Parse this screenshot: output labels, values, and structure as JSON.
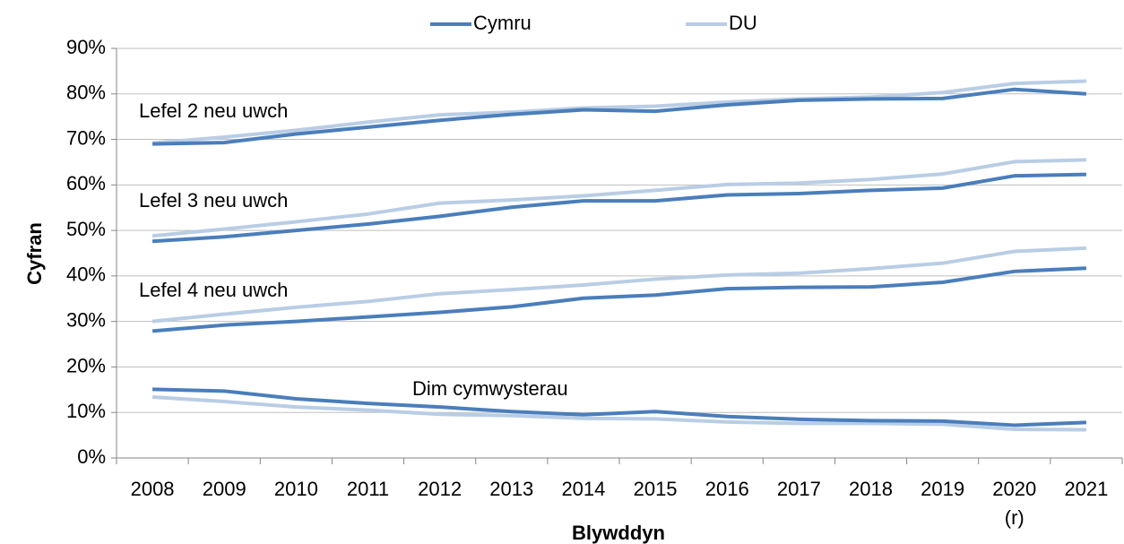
{
  "chart_data": {
    "type": "line",
    "x_label": "Blywddyn",
    "y_label": "Cyfran",
    "legend_position": "top",
    "categories": [
      "2008",
      "2009",
      "2010",
      "2011",
      "2012",
      "2013",
      "2014",
      "2015",
      "2016",
      "2017",
      "2018",
      "2019",
      "2020",
      "2021"
    ],
    "category_notes": [
      null,
      null,
      null,
      null,
      null,
      null,
      null,
      null,
      null,
      null,
      null,
      null,
      "(r)",
      null
    ],
    "legend": [
      {
        "name": "Cymru",
        "color": "#4a7ebb"
      },
      {
        "name": "DU",
        "color": "#b9cde5"
      }
    ],
    "groups": [
      {
        "label": "Lefel 2 neu uwch",
        "values": [
          [
            69.0,
            69.3,
            71.2,
            72.7,
            74.2,
            75.5,
            76.5,
            76.2,
            77.6,
            78.6,
            78.9,
            79.0,
            81.0,
            80.0
          ],
          [
            69.2,
            70.5,
            72.0,
            73.8,
            75.4,
            76.0,
            76.9,
            77.3,
            78.2,
            78.9,
            79.3,
            80.3,
            82.3,
            82.8
          ]
        ]
      },
      {
        "label": "Lefel 3 neu uwch",
        "values": [
          [
            47.6,
            48.6,
            50.0,
            51.4,
            53.1,
            55.1,
            56.5,
            56.5,
            57.8,
            58.1,
            58.8,
            59.3,
            62.0,
            62.3
          ],
          [
            48.8,
            50.3,
            51.9,
            53.6,
            56.0,
            56.7,
            57.6,
            58.8,
            60.1,
            60.4,
            61.2,
            62.4,
            65.1,
            65.5
          ]
        ]
      },
      {
        "label": "Lefel 4 neu uwch",
        "values": [
          [
            27.9,
            29.2,
            30.0,
            31.0,
            32.0,
            33.2,
            35.1,
            35.8,
            37.2,
            37.5,
            37.6,
            38.6,
            41.0,
            41.7
          ],
          [
            30.0,
            31.6,
            33.1,
            34.4,
            36.1,
            37.0,
            38.0,
            39.3,
            40.2,
            40.6,
            41.6,
            42.8,
            45.4,
            46.1
          ]
        ]
      },
      {
        "label": "Dim cymwysterau",
        "values": [
          [
            15.1,
            14.7,
            13.0,
            12.0,
            11.2,
            10.2,
            9.5,
            10.2,
            9.1,
            8.5,
            8.2,
            8.1,
            7.2,
            7.8
          ],
          [
            13.4,
            12.4,
            11.2,
            10.5,
            9.6,
            9.3,
            8.7,
            8.6,
            7.9,
            7.6,
            7.6,
            7.4,
            6.3,
            6.2
          ]
        ]
      }
    ],
    "ylim": [
      0,
      90
    ],
    "yticks": [
      {
        "value": 0,
        "label": "0%"
      },
      {
        "value": 10,
        "label": "10%"
      },
      {
        "value": 20,
        "label": "20%"
      },
      {
        "value": 30,
        "label": "30%"
      },
      {
        "value": 40,
        "label": "40%"
      },
      {
        "value": 50,
        "label": "50%"
      },
      {
        "value": 60,
        "label": "60%"
      },
      {
        "value": 70,
        "label": "70%"
      },
      {
        "value": 80,
        "label": "80%"
      },
      {
        "value": 90,
        "label": "90%"
      }
    ],
    "grid": true
  }
}
